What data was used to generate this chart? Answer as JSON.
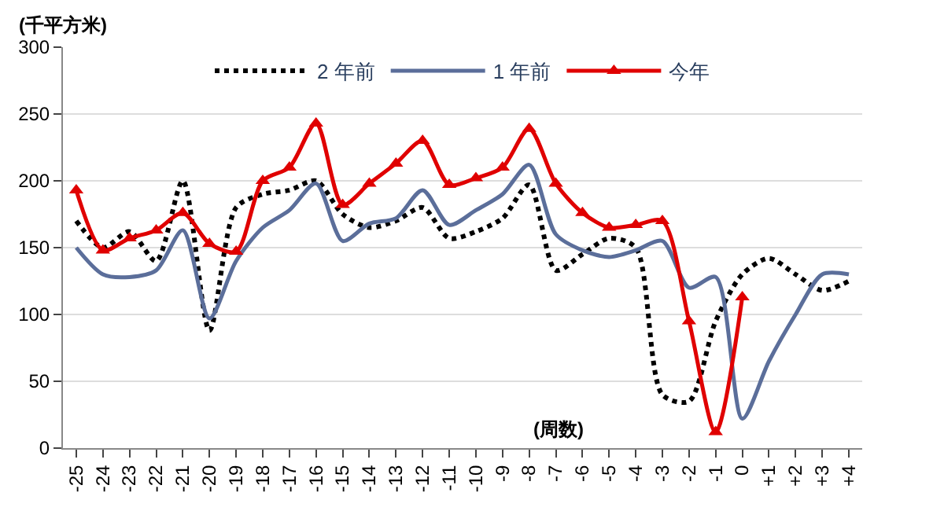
{
  "chart_data": {
    "type": "line",
    "xlabel": "(周数)",
    "ylabel": "(千平方米)",
    "categories": [
      "-25",
      "-24",
      "-23",
      "-22",
      "-21",
      "-20",
      "-19",
      "-18",
      "-17",
      "-16",
      "-15",
      "-14",
      "-13",
      "-12",
      "-11",
      "-10",
      "-9",
      "-8",
      "-7",
      "-6",
      "-5",
      "-4",
      "-3",
      "-2",
      "-1",
      "0",
      "+1",
      "+2",
      "+3",
      "+4"
    ],
    "series": [
      {
        "name": "2 年前",
        "color": "#000000",
        "line_style": "dotted",
        "marker": "none",
        "values": [
          170,
          150,
          162,
          140,
          200,
          88,
          180,
          190,
          193,
          200,
          175,
          165,
          170,
          180,
          157,
          162,
          172,
          197,
          133,
          145,
          157,
          150,
          40,
          35,
          95,
          130,
          142,
          130,
          118,
          125
        ]
      },
      {
        "name": "1 年前",
        "color": "#5b6e9a",
        "line_style": "solid",
        "marker": "none",
        "values": [
          150,
          130,
          128,
          133,
          163,
          97,
          140,
          165,
          178,
          198,
          155,
          168,
          172,
          193,
          167,
          178,
          190,
          212,
          160,
          148,
          143,
          148,
          155,
          120,
          128,
          22,
          65,
          100,
          130,
          130
        ]
      },
      {
        "name": "今年",
        "color": "#e00000",
        "line_style": "solid",
        "marker": "triangle",
        "values": [
          193,
          148,
          157,
          163,
          176,
          153,
          147,
          200,
          210,
          243,
          182,
          198,
          213,
          230,
          197,
          202,
          210,
          239,
          198,
          176,
          165,
          167,
          170,
          95,
          12,
          113,
          null,
          null,
          null,
          null
        ]
      }
    ],
    "ylim": [
      0,
      300
    ],
    "yticks": [
      0,
      50,
      100,
      150,
      200,
      250,
      300
    ],
    "grid": "y",
    "legend": "top"
  }
}
